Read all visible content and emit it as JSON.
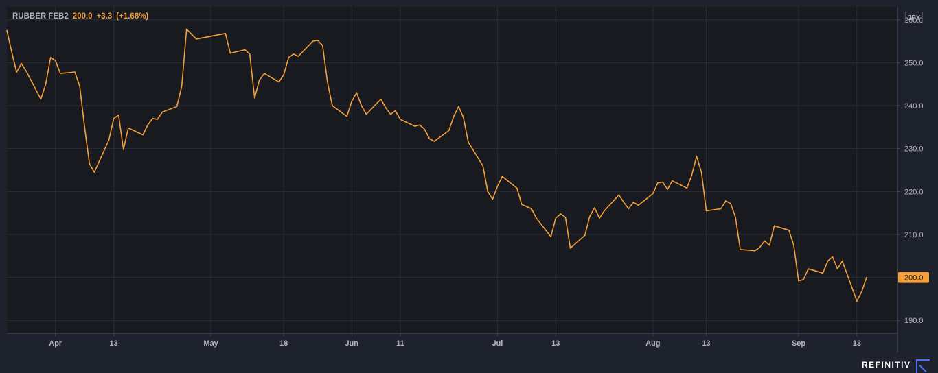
{
  "legend": {
    "symbol": "RUBBER FEB2",
    "last": "200.0",
    "change": "+3.3",
    "change_pct": "(+1.68%)"
  },
  "currency": "JPY",
  "brand": "REFINITIV",
  "colors": {
    "background": "#1e222d",
    "plot_background": "#181a20",
    "grid": "#2a2e39",
    "line": "#f5a03a",
    "text": "#b2b5be"
  },
  "chart_data": {
    "type": "line",
    "title": "",
    "xlabel": "",
    "ylabel": "",
    "ylim": [
      187,
      263
    ],
    "y_ticks": [
      190,
      200,
      210,
      220,
      230,
      240,
      250,
      260
    ],
    "y_tick_labels": [
      "190.0",
      "200.0",
      "210.0",
      "220.0",
      "230.0",
      "240.0",
      "250.0",
      "260.0"
    ],
    "x_ticks": [
      {
        "date": "2021-04-01",
        "label": "Apr"
      },
      {
        "date": "2021-04-13",
        "label": "13"
      },
      {
        "date": "2021-05-03",
        "label": "May"
      },
      {
        "date": "2021-05-18",
        "label": "18"
      },
      {
        "date": "2021-06-01",
        "label": "Jun"
      },
      {
        "date": "2021-06-11",
        "label": "11"
      },
      {
        "date": "2021-07-01",
        "label": "Jul"
      },
      {
        "date": "2021-07-13",
        "label": "13"
      },
      {
        "date": "2021-08-02",
        "label": "Aug"
      },
      {
        "date": "2021-08-13",
        "label": "13"
      },
      {
        "date": "2021-09-01",
        "label": "Sep"
      },
      {
        "date": "2021-09-13",
        "label": "13"
      }
    ],
    "last_value_label": "200.0",
    "grid": true,
    "legend": "top-left",
    "series": [
      {
        "values": [
          [
            "2021-03-22",
            257.5
          ],
          [
            "2021-03-23",
            252.5
          ],
          [
            "2021-03-24",
            247.8
          ],
          [
            "2021-03-25",
            249.8
          ],
          [
            "2021-03-26",
            248.0
          ],
          [
            "2021-03-29",
            241.5
          ],
          [
            "2021-03-30",
            245.0
          ],
          [
            "2021-03-31",
            251.2
          ],
          [
            "2021-04-01",
            250.5
          ],
          [
            "2021-04-02",
            247.5
          ],
          [
            "2021-04-05",
            247.8
          ],
          [
            "2021-04-06",
            244.5
          ],
          [
            "2021-04-07",
            235.0
          ],
          [
            "2021-04-08",
            226.5
          ],
          [
            "2021-04-09",
            224.5
          ],
          [
            "2021-04-12",
            232.0
          ],
          [
            "2021-04-13",
            237.0
          ],
          [
            "2021-04-14",
            237.8
          ],
          [
            "2021-04-15",
            229.8
          ],
          [
            "2021-04-16",
            234.8
          ],
          [
            "2021-04-19",
            233.2
          ],
          [
            "2021-04-20",
            235.5
          ],
          [
            "2021-04-21",
            237.0
          ],
          [
            "2021-04-22",
            236.8
          ],
          [
            "2021-04-23",
            238.5
          ],
          [
            "2021-04-26",
            239.8
          ],
          [
            "2021-04-27",
            244.5
          ],
          [
            "2021-04-28",
            257.8
          ],
          [
            "2021-04-30",
            255.5
          ],
          [
            "2021-05-06",
            256.8
          ],
          [
            "2021-05-07",
            252.2
          ],
          [
            "2021-05-10",
            253.0
          ],
          [
            "2021-05-11",
            252.0
          ],
          [
            "2021-05-12",
            241.8
          ],
          [
            "2021-05-13",
            246.0
          ],
          [
            "2021-05-14",
            247.5
          ],
          [
            "2021-05-17",
            245.5
          ],
          [
            "2021-05-18",
            247.2
          ],
          [
            "2021-05-19",
            251.2
          ],
          [
            "2021-05-20",
            252.0
          ],
          [
            "2021-05-21",
            251.5
          ],
          [
            "2021-05-24",
            255.0
          ],
          [
            "2021-05-25",
            255.2
          ],
          [
            "2021-05-26",
            254.0
          ],
          [
            "2021-05-27",
            245.5
          ],
          [
            "2021-05-28",
            240.0
          ],
          [
            "2021-05-31",
            237.5
          ],
          [
            "2021-06-01",
            241.0
          ],
          [
            "2021-06-02",
            243.0
          ],
          [
            "2021-06-03",
            240.0
          ],
          [
            "2021-06-04",
            238.0
          ],
          [
            "2021-06-07",
            241.5
          ],
          [
            "2021-06-08",
            239.5
          ],
          [
            "2021-06-09",
            238.0
          ],
          [
            "2021-06-10",
            238.8
          ],
          [
            "2021-06-11",
            236.8
          ],
          [
            "2021-06-14",
            235.2
          ],
          [
            "2021-06-15",
            235.5
          ],
          [
            "2021-06-16",
            234.5
          ],
          [
            "2021-06-17",
            232.3
          ],
          [
            "2021-06-18",
            231.7
          ],
          [
            "2021-06-21",
            234.2
          ],
          [
            "2021-06-22",
            237.5
          ],
          [
            "2021-06-23",
            239.8
          ],
          [
            "2021-06-24",
            237.2
          ],
          [
            "2021-06-25",
            231.5
          ],
          [
            "2021-06-28",
            226.0
          ],
          [
            "2021-06-29",
            220.0
          ],
          [
            "2021-06-30",
            218.2
          ],
          [
            "2021-07-01",
            221.2
          ],
          [
            "2021-07-02",
            223.5
          ],
          [
            "2021-07-05",
            220.8
          ],
          [
            "2021-07-06",
            217.0
          ],
          [
            "2021-07-07",
            216.5
          ],
          [
            "2021-07-08",
            216.0
          ],
          [
            "2021-07-09",
            213.8
          ],
          [
            "2021-07-12",
            209.5
          ],
          [
            "2021-07-13",
            213.8
          ],
          [
            "2021-07-14",
            214.8
          ],
          [
            "2021-07-15",
            214.0
          ],
          [
            "2021-07-16",
            206.8
          ],
          [
            "2021-07-19",
            209.8
          ],
          [
            "2021-07-20",
            214.2
          ],
          [
            "2021-07-21",
            216.2
          ],
          [
            "2021-07-22",
            213.8
          ],
          [
            "2021-07-23",
            215.5
          ],
          [
            "2021-07-26",
            219.2
          ],
          [
            "2021-07-27",
            217.5
          ],
          [
            "2021-07-28",
            216.0
          ],
          [
            "2021-07-29",
            217.5
          ],
          [
            "2021-07-30",
            216.8
          ],
          [
            "2021-08-02",
            219.5
          ],
          [
            "2021-08-03",
            222.0
          ],
          [
            "2021-08-04",
            222.2
          ],
          [
            "2021-08-05",
            220.5
          ],
          [
            "2021-08-06",
            222.5
          ],
          [
            "2021-08-09",
            220.8
          ],
          [
            "2021-08-10",
            223.8
          ],
          [
            "2021-08-11",
            228.2
          ],
          [
            "2021-08-12",
            224.5
          ],
          [
            "2021-08-13",
            215.5
          ],
          [
            "2021-08-16",
            216.0
          ],
          [
            "2021-08-17",
            217.8
          ],
          [
            "2021-08-18",
            217.2
          ],
          [
            "2021-08-19",
            214.0
          ],
          [
            "2021-08-20",
            206.5
          ],
          [
            "2021-08-23",
            206.2
          ],
          [
            "2021-08-24",
            207.0
          ],
          [
            "2021-08-25",
            208.5
          ],
          [
            "2021-08-26",
            207.5
          ],
          [
            "2021-08-27",
            212.0
          ],
          [
            "2021-08-30",
            211.0
          ],
          [
            "2021-08-31",
            207.5
          ],
          [
            "2021-09-01",
            199.2
          ],
          [
            "2021-09-02",
            199.5
          ],
          [
            "2021-09-03",
            202.0
          ],
          [
            "2021-09-06",
            201.0
          ],
          [
            "2021-09-07",
            203.8
          ],
          [
            "2021-09-08",
            204.8
          ],
          [
            "2021-09-09",
            202.0
          ],
          [
            "2021-09-10",
            203.8
          ],
          [
            "2021-09-13",
            194.5
          ],
          [
            "2021-09-14",
            196.7
          ],
          [
            "2021-09-15",
            200.0
          ]
        ]
      }
    ]
  }
}
